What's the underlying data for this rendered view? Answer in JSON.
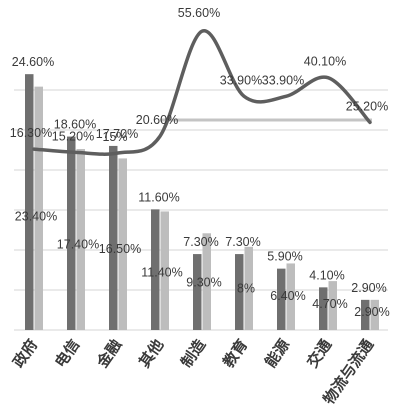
{
  "chart_data": {
    "type": "bar",
    "categories": [
      "政府",
      "电信",
      "金融",
      "其他",
      "制造",
      "教育",
      "能源",
      "交通",
      "物流与流通"
    ],
    "series": [
      {
        "values": [
          24.6,
          18.6,
          17.7,
          11.6,
          7.3,
          7.3,
          5.9,
          4.1,
          2.9
        ],
        "labels": [
          "24.60%",
          "18.60%",
          "17.70%",
          "11.60%",
          "7.30%",
          "7.30%",
          "5.90%",
          "4.10%",
          "2.90%"
        ]
      },
      {
        "values": [
          23.4,
          17.4,
          16.5,
          11.4,
          9.3,
          8.0,
          6.4,
          4.7,
          2.9
        ],
        "labels": [
          "23.40%",
          "17.40%",
          "16.50%",
          "11.40%",
          "9.30%",
          "8%",
          "6.40%",
          "4.70%",
          "2.90%"
        ]
      }
    ],
    "line": {
      "values": [
        16.3,
        15.2,
        15.0,
        20.6,
        55.6,
        33.9,
        33.9,
        40.1,
        25.2
      ],
      "labels": [
        "16.30%",
        "15.20%",
        "15%",
        "20.60%",
        "55.60%",
        "33.90%",
        "33.90%",
        "40.10%",
        "25.20%"
      ]
    },
    "grid": true,
    "legend": "none",
    "colors": {
      "series1": "#6f6f6f",
      "series2": "#bdbdbd",
      "line": "#5e5e5e",
      "refline": "#c4c4c4",
      "grid": "#d4d4d4"
    }
  }
}
